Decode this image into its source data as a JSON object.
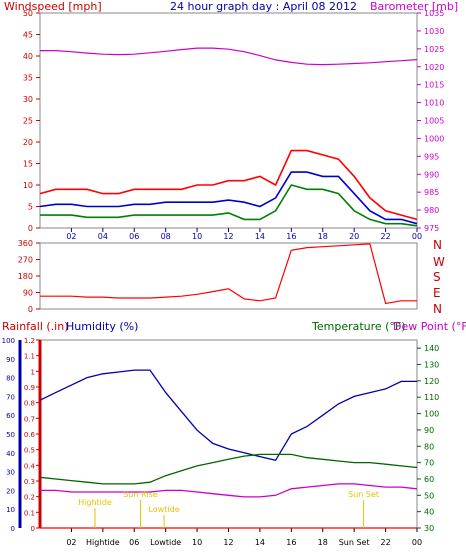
{
  "chart_data": [
    {
      "type": "line",
      "title": "24 hour graph day : April 08 2012",
      "left_axis_label": "Windspeed [mph]",
      "right_axis_label": "Barometer [mb]",
      "x_ticks": [
        "02",
        "04",
        "06",
        "08",
        "10",
        "12",
        "14",
        "16",
        "18",
        "20",
        "22",
        "00"
      ],
      "y_left_ticks": [
        "0",
        "5",
        "10",
        "15",
        "20",
        "25",
        "30",
        "35",
        "40",
        "45",
        "50"
      ],
      "y_right_ticks": [
        "975",
        "980",
        "985",
        "990",
        "995",
        "1000",
        "1005",
        "1010",
        "1015",
        "1020",
        "1025",
        "1030",
        "1035"
      ],
      "ylim_left": [
        0,
        50
      ],
      "ylim_right": [
        975,
        1035
      ],
      "series": [
        {
          "key": "barometer",
          "color": "#cc00cc",
          "axis": "right",
          "x": [
            0,
            1,
            2,
            3,
            4,
            5,
            6,
            7,
            8,
            9,
            10,
            11,
            12,
            13,
            14,
            15,
            16,
            17,
            18,
            19,
            20,
            21,
            22,
            23,
            24
          ],
          "y": [
            1024.5,
            1024.5,
            1024.2,
            1023.8,
            1023.5,
            1023.4,
            1023.5,
            1023.9,
            1024.3,
            1024.8,
            1025.2,
            1025.2,
            1024.9,
            1024.2,
            1023.1,
            1021.9,
            1021.2,
            1020.7,
            1020.6,
            1020.7,
            1020.9,
            1021.1,
            1021.4,
            1021.7,
            1022.0
          ]
        },
        {
          "key": "wind_gust",
          "color": "#ff0000",
          "axis": "left",
          "x": [
            0,
            1,
            2,
            3,
            4,
            5,
            6,
            7,
            8,
            9,
            10,
            11,
            12,
            13,
            14,
            15,
            16,
            17,
            18,
            19,
            20,
            21,
            22,
            23,
            24
          ],
          "y": [
            8,
            9,
            9,
            9,
            8,
            8,
            9,
            9,
            9,
            9,
            10,
            10,
            11,
            11,
            12,
            10,
            18,
            18,
            17,
            16,
            12,
            7,
            4,
            3,
            2
          ]
        },
        {
          "key": "wind_avg",
          "color": "#0000cc",
          "axis": "left",
          "x": [
            0,
            1,
            2,
            3,
            4,
            5,
            6,
            7,
            8,
            9,
            10,
            11,
            12,
            13,
            14,
            15,
            16,
            17,
            18,
            19,
            20,
            21,
            22,
            23,
            24
          ],
          "y": [
            5,
            5.5,
            5.5,
            5,
            5,
            5,
            5.5,
            5.5,
            6,
            6,
            6,
            6,
            6.5,
            6,
            5,
            7,
            13,
            13,
            12,
            12,
            8,
            4,
            2,
            2,
            1
          ]
        },
        {
          "key": "wind_min",
          "color": "#008000",
          "axis": "left",
          "x": [
            0,
            1,
            2,
            3,
            4,
            5,
            6,
            7,
            8,
            9,
            10,
            11,
            12,
            13,
            14,
            15,
            16,
            17,
            18,
            19,
            20,
            21,
            22,
            23,
            24
          ],
          "y": [
            3,
            3,
            3,
            2.5,
            2.5,
            2.5,
            3,
            3,
            3,
            3,
            3,
            3,
            3.5,
            2,
            2,
            4,
            10,
            9,
            9,
            8,
            4,
            2,
            1,
            1,
            0.5
          ]
        }
      ]
    },
    {
      "type": "line",
      "right_labels": [
        "N",
        "W",
        "S",
        "E",
        "N"
      ],
      "y_left_ticks": [
        "0",
        "90",
        "180",
        "270",
        "360"
      ],
      "ylim": [
        0,
        360
      ],
      "series": [
        {
          "key": "wind_direction",
          "color": "#ff0000",
          "x": [
            0,
            1,
            2,
            3,
            4,
            5,
            6,
            7,
            8,
            9,
            10,
            11,
            12,
            13,
            14,
            15,
            16,
            17,
            18,
            19,
            20,
            21,
            22,
            23,
            24
          ],
          "y": [
            70,
            70,
            70,
            65,
            65,
            60,
            60,
            60,
            65,
            70,
            80,
            95,
            110,
            55,
            45,
            60,
            320,
            335,
            340,
            345,
            350,
            355,
            30,
            45,
            45
          ]
        }
      ]
    },
    {
      "type": "line",
      "left_label_rain": "Rainfall (.in)",
      "left_label_humidity": "Humidity (%)",
      "right_label_temp": "Temperature (°F)",
      "right_label_dew": "Dew Point (°F)",
      "y_rain_ticks": [
        "0",
        "0.1",
        "0.2",
        "0.3",
        "0.4",
        "0.5",
        "0.6",
        "0.7",
        "0.8",
        "0.9",
        "1",
        "1.1",
        "1.2"
      ],
      "y_humidity_ticks": [
        "0",
        "10",
        "20",
        "30",
        "40",
        "50",
        "60",
        "70",
        "80",
        "90",
        "100"
      ],
      "y_temp_ticks": [
        "30",
        "40",
        "50",
        "60",
        "70",
        "80",
        "90",
        "100",
        "110",
        "120",
        "130",
        "140"
      ],
      "x_ticks": [
        "02",
        "Hightide",
        "06",
        "Lowtide",
        "10",
        "12",
        "14",
        "16",
        "18",
        "Sun Set",
        "22",
        "00"
      ],
      "annotations": [
        {
          "text": "Hightide",
          "x": 3.5
        },
        {
          "text": "Sun Rise",
          "x": 6.4
        },
        {
          "text": "Lowtide",
          "x": 7.9
        },
        {
          "text": "Sun Set",
          "x": 20.6
        }
      ],
      "ylim_humidity": [
        0,
        100
      ],
      "ylim_temp": [
        30,
        145
      ],
      "series": [
        {
          "key": "humidity",
          "color": "#0000aa",
          "axis": "humidity",
          "x": [
            0,
            1,
            2,
            3,
            4,
            5,
            6,
            7,
            8,
            9,
            10,
            11,
            12,
            13,
            14,
            15,
            16,
            17,
            18,
            19,
            20,
            21,
            22,
            23,
            24
          ],
          "y": [
            68,
            72,
            76,
            80,
            82,
            83,
            84,
            84,
            72,
            62,
            52,
            45,
            42,
            40,
            38,
            36,
            50,
            54,
            60,
            66,
            70,
            72,
            74,
            78,
            78
          ]
        },
        {
          "key": "temperature",
          "color": "#006600",
          "axis": "temp",
          "x": [
            0,
            1,
            2,
            3,
            4,
            5,
            6,
            7,
            8,
            9,
            10,
            11,
            12,
            13,
            14,
            15,
            16,
            17,
            18,
            19,
            20,
            21,
            22,
            23,
            24
          ],
          "y": [
            61,
            60,
            59,
            58,
            57,
            57,
            57,
            58,
            62,
            65,
            68,
            70,
            72,
            74,
            75,
            75,
            75,
            73,
            72,
            71,
            70,
            70,
            69,
            68,
            67
          ]
        },
        {
          "key": "dew_point",
          "color": "#cc00cc",
          "axis": "temp",
          "x": [
            0,
            1,
            2,
            3,
            4,
            5,
            6,
            7,
            8,
            9,
            10,
            11,
            12,
            13,
            14,
            15,
            16,
            17,
            18,
            19,
            20,
            21,
            22,
            23,
            24
          ],
          "y": [
            53,
            53,
            52,
            52,
            52,
            52,
            52,
            52,
            53,
            53,
            52,
            51,
            50,
            49,
            49,
            50,
            54,
            55,
            56,
            57,
            57,
            56,
            55,
            55,
            54
          ]
        },
        {
          "key": "rainfall",
          "color": "#ff0000",
          "axis": "rain",
          "x": [
            0,
            24
          ],
          "y": [
            0,
            0
          ]
        }
      ]
    }
  ]
}
